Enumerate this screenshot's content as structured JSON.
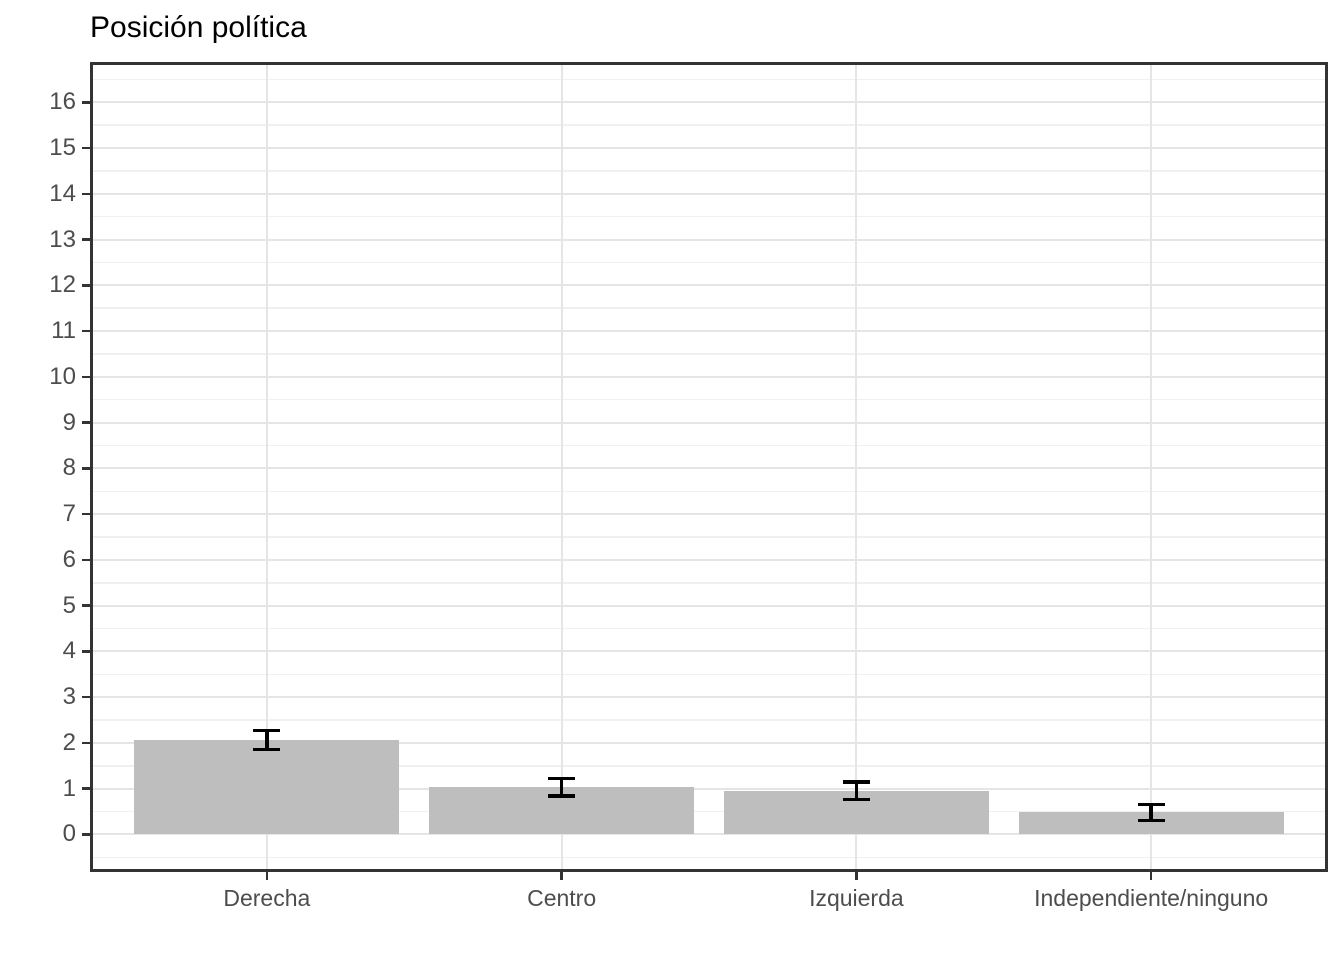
{
  "chart_data": {
    "type": "bar",
    "title": "Posición política",
    "categories": [
      "Derecha",
      "Centro",
      "Izquierda",
      "Independiente/ninguno"
    ],
    "values": [
      2.07,
      1.03,
      0.96,
      0.49
    ],
    "error_low": [
      1.86,
      0.84,
      0.76,
      0.31
    ],
    "error_high": [
      2.27,
      1.22,
      1.15,
      0.65
    ],
    "xlabel": "",
    "ylabel": "",
    "y_ticks": [
      0,
      1,
      2,
      3,
      4,
      5,
      6,
      7,
      8,
      9,
      10,
      11,
      12,
      13,
      14,
      15,
      16
    ],
    "ylim": [
      0,
      16
    ],
    "grid": "horizontal major+minor, vertical at category centers",
    "legend": "none",
    "colors": {
      "bar_fill": "#bebebe",
      "error_bar": "#000000",
      "panel_border": "#333333",
      "grid_major": "#e5e5e5",
      "grid_minor": "#f0f0f0",
      "axis_text": "#4d4d4d",
      "title_text": "#000000",
      "background": "#ffffff"
    }
  }
}
